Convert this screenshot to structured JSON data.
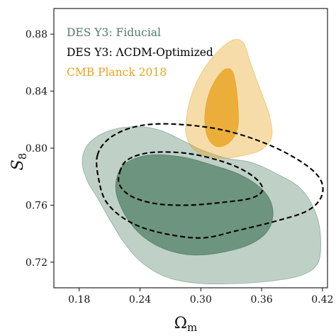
{
  "chart_data": {
    "type": "contour",
    "xlabel": "Ω",
    "xlabel_sub": "m",
    "ylabel": "S",
    "ylabel_sub": "8",
    "xlim": [
      0.155,
      0.425
    ],
    "ylim": [
      0.702,
      0.898
    ],
    "x_ticks": [
      0.18,
      0.24,
      0.3,
      0.36,
      0.42
    ],
    "x_tick_labels": [
      "0.18",
      "0.24",
      "0.30",
      "0.36",
      "0.42"
    ],
    "y_ticks": [
      0.72,
      0.76,
      0.8,
      0.84,
      0.88
    ],
    "y_tick_labels": [
      "0.72",
      "0.76",
      "0.80",
      "0.84",
      "0.88"
    ],
    "grid": false,
    "legend_position": "top-left",
    "colors": {
      "fiducial": "#4e7d63",
      "lcdm": "#000000",
      "planck": "#e8a21c"
    },
    "series": [
      {
        "name": "DES Y3: Fiducial",
        "style": "filled",
        "color": "#4e7d63",
        "contours": [
          {
            "level": "95%",
            "opacity": 0.36,
            "points": [
              [
                0.188,
                0.777
              ],
              [
                0.183,
                0.79
              ],
              [
                0.188,
                0.802
              ],
              [
                0.205,
                0.811
              ],
              [
                0.23,
                0.815
              ],
              [
                0.258,
                0.813
              ],
              [
                0.286,
                0.804
              ],
              [
                0.3,
                0.799
              ],
              [
                0.325,
                0.793
              ],
              [
                0.35,
                0.79
              ],
              [
                0.375,
                0.782
              ],
              [
                0.398,
                0.772
              ],
              [
                0.412,
                0.757
              ],
              [
                0.418,
                0.74
              ],
              [
                0.416,
                0.72
              ],
              [
                0.4,
                0.711
              ],
              [
                0.372,
                0.707
              ],
              [
                0.336,
                0.705
              ],
              [
                0.3,
                0.705
              ],
              [
                0.268,
                0.709
              ],
              [
                0.243,
                0.719
              ],
              [
                0.225,
                0.733
              ],
              [
                0.21,
                0.75
              ],
              [
                0.198,
                0.765
              ]
            ]
          },
          {
            "level": "68%",
            "opacity": 0.72,
            "points": [
              [
                0.217,
                0.767
              ],
              [
                0.217,
                0.779
              ],
              [
                0.225,
                0.789
              ],
              [
                0.248,
                0.795
              ],
              [
                0.28,
                0.794
              ],
              [
                0.312,
                0.788
              ],
              [
                0.34,
                0.781
              ],
              [
                0.362,
                0.77
              ],
              [
                0.371,
                0.757
              ],
              [
                0.367,
                0.743
              ],
              [
                0.35,
                0.733
              ],
              [
                0.322,
                0.727
              ],
              [
                0.292,
                0.725
              ],
              [
                0.265,
                0.729
              ],
              [
                0.243,
                0.738
              ],
              [
                0.227,
                0.751
              ]
            ]
          }
        ]
      },
      {
        "name": "DES Y3: ΛCDM-Optimized",
        "style": "dashed",
        "color": "#000000",
        "contours": [
          {
            "level": "95%",
            "points": [
              [
                0.198,
                0.795
              ],
              [
                0.21,
                0.807
              ],
              [
                0.235,
                0.815
              ],
              [
                0.27,
                0.817
              ],
              [
                0.32,
                0.813
              ],
              [
                0.365,
                0.803
              ],
              [
                0.4,
                0.79
              ],
              [
                0.418,
                0.778
              ],
              [
                0.419,
                0.766
              ],
              [
                0.405,
                0.756
              ],
              [
                0.375,
                0.749
              ],
              [
                0.335,
                0.742
              ],
              [
                0.3,
                0.737
              ],
              [
                0.258,
                0.741
              ],
              [
                0.228,
                0.749
              ],
              [
                0.207,
                0.762
              ],
              [
                0.199,
                0.779
              ]
            ]
          },
          {
            "level": "68%",
            "points": [
              [
                0.22,
                0.783
              ],
              [
                0.228,
                0.792
              ],
              [
                0.252,
                0.797
              ],
              [
                0.29,
                0.796
              ],
              [
                0.328,
                0.789
              ],
              [
                0.352,
                0.78
              ],
              [
                0.361,
                0.771
              ],
              [
                0.35,
                0.765
              ],
              [
                0.322,
                0.762
              ],
              [
                0.288,
                0.76
              ],
              [
                0.256,
                0.761
              ],
              [
                0.232,
                0.766
              ],
              [
                0.22,
                0.774
              ]
            ]
          }
        ]
      },
      {
        "name": "CMB Planck 2018",
        "style": "filled",
        "color": "#e8a21c",
        "contours": [
          {
            "level": "95%",
            "opacity": 0.38,
            "points": [
              [
                0.285,
                0.814
              ],
              [
                0.289,
                0.833
              ],
              [
                0.3,
                0.852
              ],
              [
                0.317,
                0.868
              ],
              [
                0.332,
                0.876
              ],
              [
                0.342,
                0.874
              ],
              [
                0.348,
                0.862
              ],
              [
                0.355,
                0.848
              ],
              [
                0.362,
                0.835
              ],
              [
                0.368,
                0.822
              ],
              [
                0.37,
                0.808
              ],
              [
                0.36,
                0.799
              ],
              [
                0.343,
                0.795
              ],
              [
                0.324,
                0.793
              ],
              [
                0.306,
                0.794
              ],
              [
                0.293,
                0.799
              ],
              [
                0.287,
                0.806
              ]
            ]
          },
          {
            "level": "68%",
            "opacity": 0.78,
            "points": [
              [
                0.304,
                0.818
              ],
              [
                0.306,
                0.833
              ],
              [
                0.313,
                0.846
              ],
              [
                0.323,
                0.855
              ],
              [
                0.331,
                0.854
              ],
              [
                0.335,
                0.842
              ],
              [
                0.337,
                0.826
              ],
              [
                0.336,
                0.813
              ],
              [
                0.328,
                0.804
              ],
              [
                0.317,
                0.801
              ],
              [
                0.308,
                0.806
              ]
            ]
          }
        ]
      }
    ]
  }
}
